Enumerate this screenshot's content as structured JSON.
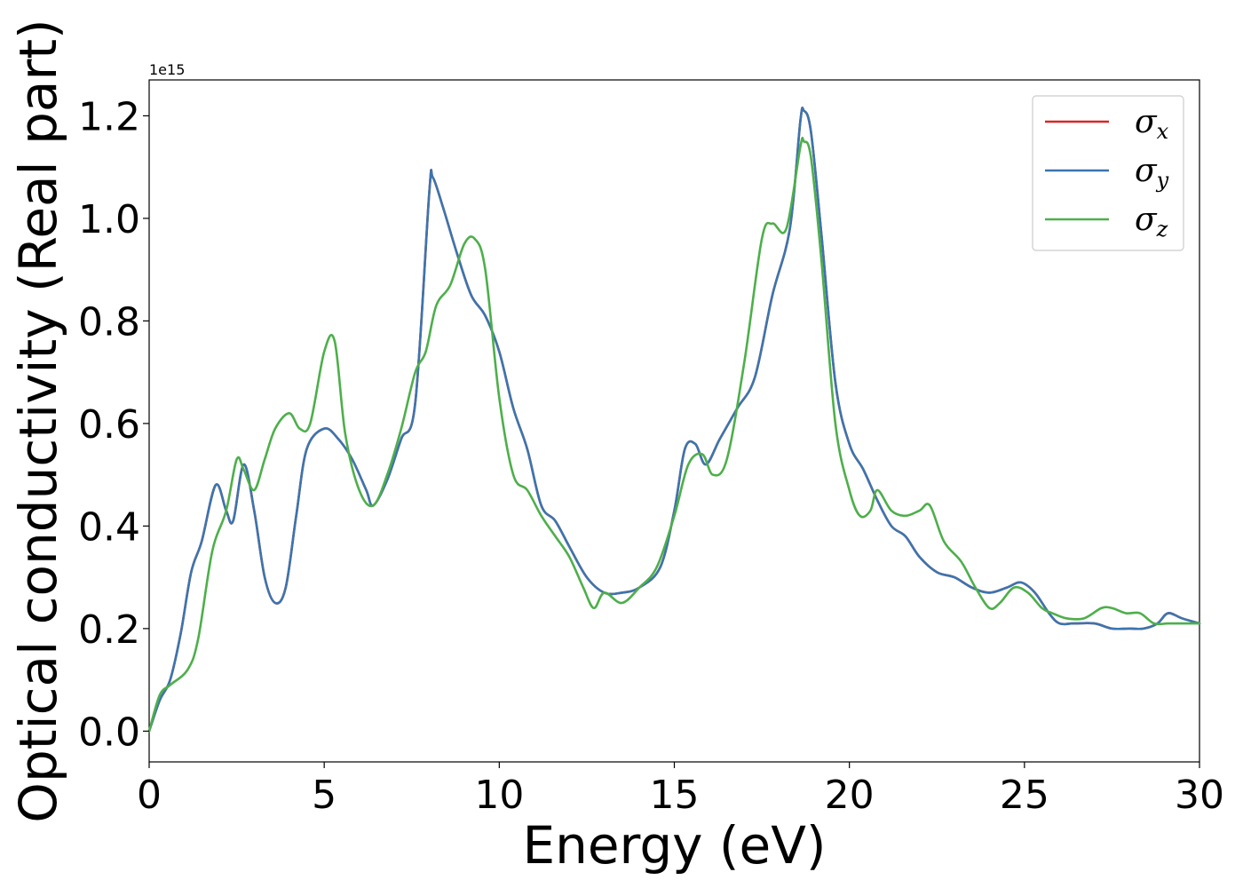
{
  "chart_data": {
    "type": "line",
    "xlabel": "Energy (eV)",
    "ylabel": "Optical conductivity (Real part)",
    "y_offset_text": "1e15",
    "y_scale_factor": 1000000000000000.0,
    "xlim": [
      0,
      30
    ],
    "ylim": [
      -0.06,
      1.27
    ],
    "x_ticks": [
      0,
      5,
      10,
      15,
      20,
      25,
      30
    ],
    "x_tick_labels": [
      "0",
      "5",
      "10",
      "15",
      "20",
      "25",
      "30"
    ],
    "y_ticks": [
      0.0,
      0.2,
      0.4,
      0.6,
      0.8,
      1.0,
      1.2
    ],
    "y_tick_labels": [
      "0.0",
      "0.2",
      "0.4",
      "0.6",
      "0.8",
      "1.0",
      "1.2"
    ],
    "grid": false,
    "legend_position": "top-right",
    "series": [
      {
        "name": "σx",
        "symbol": "σ",
        "subscript": "x",
        "color": "#d62728",
        "x": [
          0,
          0.3,
          0.6,
          0.9,
          1.2,
          1.5,
          1.9,
          2.2,
          2.4,
          2.7,
          3.0,
          3.3,
          3.6,
          3.9,
          4.2,
          4.5,
          5.0,
          5.4,
          5.8,
          6.2,
          6.4,
          6.8,
          7.2,
          7.6,
          8.0,
          8.1,
          8.4,
          8.8,
          9.2,
          9.6,
          10.0,
          10.4,
          10.8,
          11.2,
          11.6,
          12.0,
          12.5,
          13.0,
          13.5,
          14.0,
          14.6,
          15.0,
          15.3,
          15.6,
          15.9,
          16.3,
          16.8,
          17.3,
          17.8,
          18.3,
          18.6,
          18.7,
          18.9,
          19.2,
          19.6,
          20.0,
          20.4,
          20.8,
          21.2,
          21.6,
          22.0,
          22.5,
          23.0,
          23.5,
          24.0,
          24.5,
          24.9,
          25.3,
          25.7,
          26.0,
          26.4,
          27.0,
          27.5,
          28.0,
          28.4,
          28.8,
          29.1,
          29.5,
          30.0
        ],
        "values": [
          0.0,
          0.06,
          0.1,
          0.19,
          0.31,
          0.37,
          0.48,
          0.43,
          0.41,
          0.52,
          0.43,
          0.3,
          0.25,
          0.28,
          0.42,
          0.55,
          0.59,
          0.57,
          0.53,
          0.47,
          0.44,
          0.49,
          0.57,
          0.64,
          1.05,
          1.08,
          1.02,
          0.93,
          0.85,
          0.81,
          0.74,
          0.63,
          0.55,
          0.44,
          0.41,
          0.36,
          0.3,
          0.27,
          0.27,
          0.28,
          0.32,
          0.43,
          0.55,
          0.56,
          0.52,
          0.57,
          0.63,
          0.69,
          0.85,
          0.98,
          1.19,
          1.21,
          1.17,
          0.97,
          0.68,
          0.56,
          0.51,
          0.45,
          0.4,
          0.38,
          0.34,
          0.31,
          0.3,
          0.28,
          0.27,
          0.28,
          0.29,
          0.27,
          0.23,
          0.21,
          0.21,
          0.21,
          0.2,
          0.2,
          0.2,
          0.21,
          0.23,
          0.22,
          0.21
        ]
      },
      {
        "name": "σy",
        "symbol": "σ",
        "subscript": "y",
        "color": "#3b75af",
        "x": [
          0,
          0.3,
          0.6,
          0.9,
          1.2,
          1.5,
          1.9,
          2.2,
          2.4,
          2.7,
          3.0,
          3.3,
          3.6,
          3.9,
          4.2,
          4.5,
          5.0,
          5.4,
          5.8,
          6.2,
          6.4,
          6.8,
          7.2,
          7.6,
          8.0,
          8.1,
          8.4,
          8.8,
          9.2,
          9.6,
          10.0,
          10.4,
          10.8,
          11.2,
          11.6,
          12.0,
          12.5,
          13.0,
          13.5,
          14.0,
          14.6,
          15.0,
          15.3,
          15.6,
          15.9,
          16.3,
          16.8,
          17.3,
          17.8,
          18.3,
          18.6,
          18.7,
          18.9,
          19.2,
          19.6,
          20.0,
          20.4,
          20.8,
          21.2,
          21.6,
          22.0,
          22.5,
          23.0,
          23.5,
          24.0,
          24.5,
          24.9,
          25.3,
          25.7,
          26.0,
          26.4,
          27.0,
          27.5,
          28.0,
          28.4,
          28.8,
          29.1,
          29.5,
          30.0
        ],
        "values": [
          0.0,
          0.06,
          0.1,
          0.19,
          0.31,
          0.37,
          0.48,
          0.43,
          0.41,
          0.52,
          0.43,
          0.3,
          0.25,
          0.28,
          0.42,
          0.55,
          0.59,
          0.57,
          0.53,
          0.47,
          0.44,
          0.49,
          0.57,
          0.64,
          1.05,
          1.08,
          1.02,
          0.93,
          0.85,
          0.81,
          0.74,
          0.63,
          0.55,
          0.44,
          0.41,
          0.36,
          0.3,
          0.27,
          0.27,
          0.28,
          0.32,
          0.43,
          0.55,
          0.56,
          0.52,
          0.57,
          0.63,
          0.69,
          0.85,
          0.98,
          1.19,
          1.21,
          1.17,
          0.97,
          0.68,
          0.56,
          0.51,
          0.45,
          0.4,
          0.38,
          0.34,
          0.31,
          0.3,
          0.28,
          0.27,
          0.28,
          0.29,
          0.27,
          0.23,
          0.21,
          0.21,
          0.21,
          0.2,
          0.2,
          0.2,
          0.21,
          0.23,
          0.22,
          0.21
        ]
      },
      {
        "name": "σz",
        "symbol": "σ",
        "subscript": "z",
        "color": "#4daf4a",
        "x": [
          0,
          0.3,
          0.6,
          1.1,
          1.4,
          1.8,
          2.2,
          2.5,
          2.7,
          3.0,
          3.3,
          3.6,
          4.0,
          4.3,
          4.6,
          5.0,
          5.3,
          5.6,
          6.0,
          6.4,
          6.8,
          7.2,
          7.6,
          7.9,
          8.2,
          8.6,
          9.0,
          9.3,
          9.6,
          10.0,
          10.4,
          10.8,
          11.2,
          11.6,
          12.0,
          12.4,
          12.7,
          13.0,
          13.5,
          14.0,
          14.5,
          15.0,
          15.4,
          15.8,
          16.1,
          16.5,
          17.0,
          17.5,
          17.8,
          18.2,
          18.6,
          18.7,
          18.9,
          19.2,
          19.6,
          20.0,
          20.3,
          20.6,
          20.8,
          21.2,
          21.6,
          22.0,
          22.3,
          22.7,
          23.2,
          23.6,
          24.0,
          24.3,
          24.7,
          25.1,
          25.5,
          25.8,
          26.2,
          26.7,
          27.2,
          27.5,
          27.9,
          28.3,
          28.7,
          29.1,
          29.5,
          30.0
        ],
        "values": [
          0.0,
          0.07,
          0.09,
          0.12,
          0.18,
          0.35,
          0.43,
          0.53,
          0.51,
          0.47,
          0.53,
          0.59,
          0.62,
          0.59,
          0.6,
          0.74,
          0.76,
          0.58,
          0.47,
          0.44,
          0.5,
          0.59,
          0.7,
          0.74,
          0.83,
          0.87,
          0.95,
          0.96,
          0.9,
          0.65,
          0.5,
          0.47,
          0.42,
          0.38,
          0.34,
          0.28,
          0.24,
          0.27,
          0.25,
          0.28,
          0.32,
          0.42,
          0.52,
          0.54,
          0.5,
          0.53,
          0.72,
          0.96,
          0.99,
          0.98,
          1.14,
          1.15,
          1.12,
          0.92,
          0.6,
          0.47,
          0.42,
          0.43,
          0.47,
          0.43,
          0.42,
          0.43,
          0.44,
          0.37,
          0.33,
          0.28,
          0.24,
          0.25,
          0.28,
          0.27,
          0.24,
          0.23,
          0.22,
          0.22,
          0.24,
          0.24,
          0.23,
          0.23,
          0.21,
          0.21,
          0.21,
          0.21
        ]
      }
    ]
  }
}
